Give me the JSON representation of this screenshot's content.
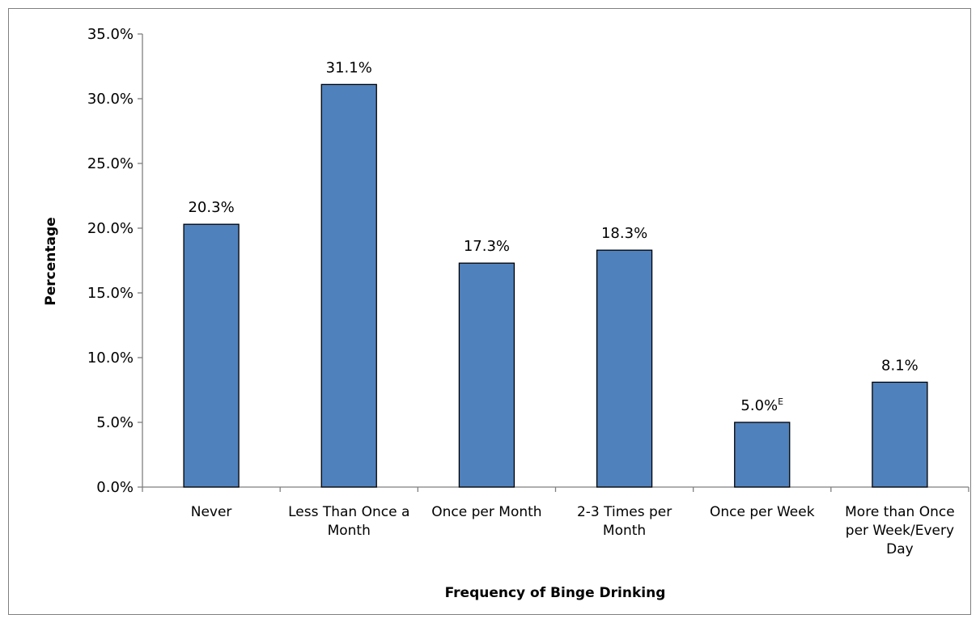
{
  "chart_data": {
    "type": "bar",
    "title": "",
    "xlabel": "Frequency of Binge Drinking",
    "ylabel": "Percentage",
    "ylim": [
      0,
      35
    ],
    "ytick_step": 5,
    "yticks": [
      "0.0%",
      "5.0%",
      "10.0%",
      "15.0%",
      "20.0%",
      "25.0%",
      "30.0%",
      "35.0%"
    ],
    "grid": false,
    "legend": "none",
    "bar_color": "#4f81bd",
    "categories": [
      [
        "Never"
      ],
      [
        "Less Than Once a",
        "Month"
      ],
      [
        "Once per Month"
      ],
      [
        "2-3 Times per",
        "Month"
      ],
      [
        "Once per Week"
      ],
      [
        "More than Once",
        "per Week/Every",
        "Day"
      ]
    ],
    "values": [
      20.3,
      31.1,
      17.3,
      18.3,
      5.0,
      8.1
    ],
    "data_labels": [
      "20.3%",
      "31.1%",
      "17.3%",
      "18.3%",
      "5.0%",
      "8.1%"
    ],
    "label_superscripts": [
      "",
      "",
      "",
      "",
      "E",
      ""
    ]
  }
}
